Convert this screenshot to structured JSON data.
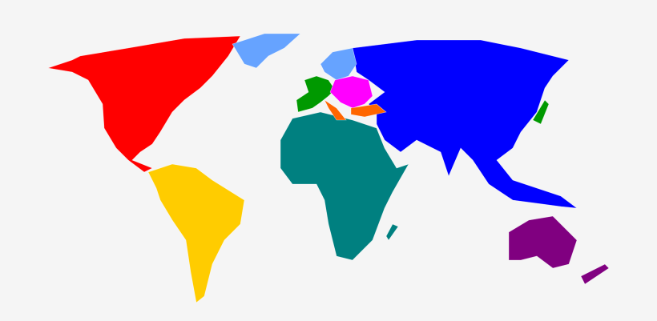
{
  "map": {
    "background": "#f5f5f5",
    "regions": [
      {
        "id": "north-america",
        "color": "#ff0000"
      },
      {
        "id": "greenland",
        "color": "#66a3ff"
      },
      {
        "id": "scandinavia",
        "color": "#66a3ff"
      },
      {
        "id": "south-america",
        "color": "#ffcc00"
      },
      {
        "id": "africa",
        "color": "#008080"
      },
      {
        "id": "asia",
        "color": "#0000ff"
      },
      {
        "id": "western-europe",
        "color": "#009900"
      },
      {
        "id": "eastern-europe",
        "color": "#ff00ff"
      },
      {
        "id": "southern-europe-turkey",
        "color": "#ff6600"
      },
      {
        "id": "australia",
        "color": "#800080"
      },
      {
        "id": "new-zealand",
        "color": "#800080"
      },
      {
        "id": "japan",
        "color": "#009900"
      },
      {
        "id": "madagascar",
        "color": "#008080"
      }
    ]
  }
}
